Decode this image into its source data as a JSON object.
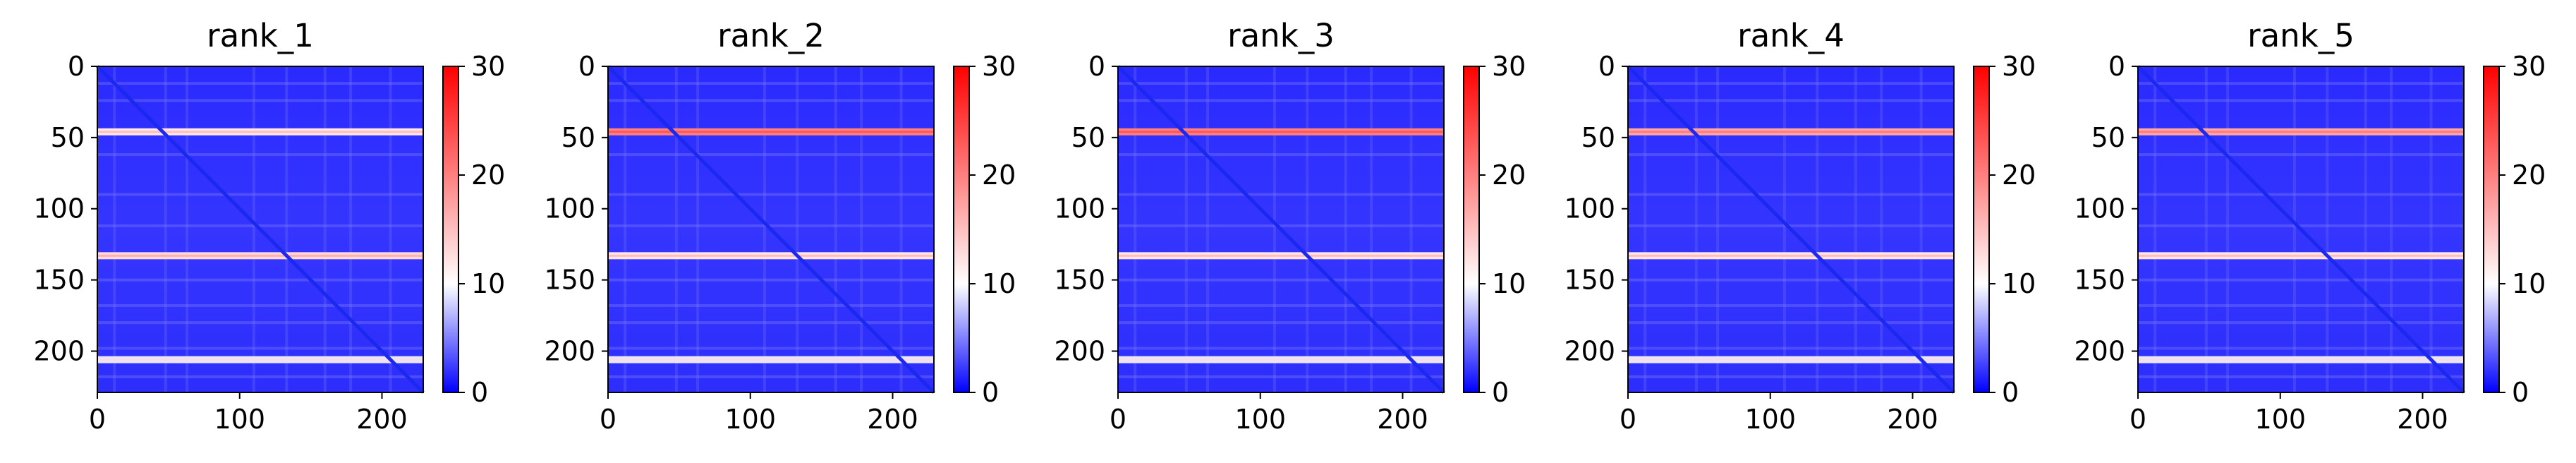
{
  "chart_data": [
    {
      "type": "heatmap",
      "title": "rank_1",
      "x_ticks": [
        0,
        100,
        200
      ],
      "y_ticks": [
        0,
        50,
        100,
        150,
        200
      ],
      "xlim": [
        0,
        229
      ],
      "ylim": [
        229,
        0
      ],
      "colorbar": {
        "ticks": [
          0,
          10,
          20,
          30
        ],
        "range": [
          0,
          30
        ],
        "colormap": "bwr"
      },
      "bright_rows": [
        {
          "y": 46,
          "value": 12
        },
        {
          "y": 133,
          "value": 13
        },
        {
          "y": 206,
          "value": 9
        }
      ]
    },
    {
      "type": "heatmap",
      "title": "rank_2",
      "x_ticks": [
        0,
        100,
        200
      ],
      "y_ticks": [
        0,
        50,
        100,
        150,
        200
      ],
      "xlim": [
        0,
        229
      ],
      "ylim": [
        229,
        0
      ],
      "colorbar": {
        "ticks": [
          0,
          10,
          20,
          30
        ],
        "range": [
          0,
          30
        ],
        "colormap": "bwr"
      },
      "bright_rows": [
        {
          "y": 46,
          "value": 20
        },
        {
          "y": 133,
          "value": 12
        },
        {
          "y": 206,
          "value": 9
        }
      ]
    },
    {
      "type": "heatmap",
      "title": "rank_3",
      "x_ticks": [
        0,
        100,
        200
      ],
      "y_ticks": [
        0,
        50,
        100,
        150,
        200
      ],
      "xlim": [
        0,
        229
      ],
      "ylim": [
        229,
        0
      ],
      "colorbar": {
        "ticks": [
          0,
          10,
          20,
          30
        ],
        "range": [
          0,
          30
        ],
        "colormap": "bwr"
      },
      "bright_rows": [
        {
          "y": 46,
          "value": 20
        },
        {
          "y": 133,
          "value": 12
        },
        {
          "y": 206,
          "value": 9
        }
      ]
    },
    {
      "type": "heatmap",
      "title": "rank_4",
      "x_ticks": [
        0,
        100,
        200
      ],
      "y_ticks": [
        0,
        50,
        100,
        150,
        200
      ],
      "xlim": [
        0,
        229
      ],
      "ylim": [
        229,
        0
      ],
      "colorbar": {
        "ticks": [
          0,
          10,
          20,
          30
        ],
        "range": [
          0,
          30
        ],
        "colormap": "bwr"
      },
      "bright_rows": [
        {
          "y": 46,
          "value": 17
        },
        {
          "y": 133,
          "value": 12
        },
        {
          "y": 206,
          "value": 9
        }
      ]
    },
    {
      "type": "heatmap",
      "title": "rank_5",
      "x_ticks": [
        0,
        100,
        200
      ],
      "y_ticks": [
        0,
        50,
        100,
        150,
        200
      ],
      "xlim": [
        0,
        229
      ],
      "ylim": [
        229,
        0
      ],
      "colorbar": {
        "ticks": [
          0,
          10,
          20,
          30
        ],
        "range": [
          0,
          30
        ],
        "colormap": "bwr"
      },
      "bright_rows": [
        {
          "y": 46,
          "value": 17
        },
        {
          "y": 133,
          "value": 12
        },
        {
          "y": 206,
          "value": 9
        }
      ]
    }
  ],
  "colors": {
    "low": "#0000ff",
    "mid": "#ffffff",
    "high": "#ff0000",
    "diagonal": "#1a28f0"
  }
}
